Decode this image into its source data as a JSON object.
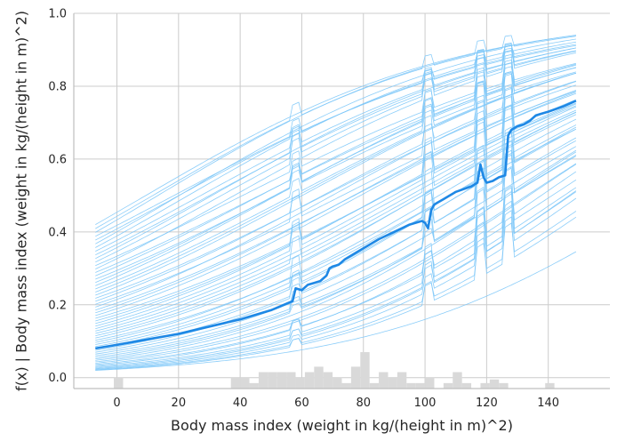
{
  "chart_data": {
    "type": "line",
    "title": "",
    "xlabel": "Body mass index (weight in kg/(height in m)^2)",
    "ylabel": "f(x) | Body mass index (weight in kg/(height in m)^2)",
    "xlim": [
      -14,
      160
    ],
    "ylim": [
      -0.03,
      1.0
    ],
    "x_ticks": [
      0,
      20,
      40,
      60,
      80,
      100,
      120,
      140
    ],
    "x_tick_labels": [
      "0",
      "20",
      "40",
      "60",
      "80",
      "100",
      "120",
      "140"
    ],
    "y_ticks": [
      0.0,
      0.2,
      0.4,
      0.6,
      0.8,
      1.0
    ],
    "y_tick_labels": [
      "0.0",
      "0.2",
      "0.4",
      "0.6",
      "0.8",
      "1.0"
    ],
    "grid": true,
    "colors": {
      "mean_line": "#1e88e5",
      "ice_lines": "#7ec8f8",
      "histogram": "#d9d9d9",
      "grid": "#cccccc",
      "axis": "#bfbfbf"
    },
    "mean_series": {
      "x": [
        -7,
        0,
        10,
        20,
        30,
        40,
        50,
        57,
        58,
        60,
        62,
        64,
        66,
        68,
        69,
        70,
        72,
        74,
        76,
        78,
        80,
        85,
        90,
        95,
        99,
        100,
        101,
        102,
        103,
        104,
        106,
        108,
        110,
        115,
        117,
        118,
        119,
        120,
        122,
        124,
        126,
        127,
        128,
        130,
        132,
        134,
        136,
        140,
        145,
        149
      ],
      "y": [
        0.08,
        0.09,
        0.105,
        0.12,
        0.14,
        0.16,
        0.185,
        0.21,
        0.245,
        0.24,
        0.255,
        0.26,
        0.265,
        0.28,
        0.3,
        0.305,
        0.31,
        0.325,
        0.335,
        0.345,
        0.355,
        0.38,
        0.4,
        0.42,
        0.43,
        0.425,
        0.41,
        0.46,
        0.475,
        0.48,
        0.49,
        0.5,
        0.51,
        0.525,
        0.535,
        0.585,
        0.55,
        0.535,
        0.54,
        0.55,
        0.555,
        0.665,
        0.68,
        0.69,
        0.695,
        0.705,
        0.72,
        0.73,
        0.745,
        0.76
      ]
    },
    "ice_lines": {
      "count": 60,
      "x_range": [
        -7,
        149
      ],
      "start_y_range": [
        0.02,
        0.42
      ],
      "end_y_range": [
        0.37,
        0.94
      ]
    },
    "histogram": {
      "bins": [
        {
          "x0": -1,
          "x1": 2,
          "h": 0.03
        },
        {
          "x0": 37,
          "x1": 40,
          "h": 0.03
        },
        {
          "x0": 40,
          "x1": 43,
          "h": 0.03
        },
        {
          "x0": 43,
          "x1": 46,
          "h": 0.015
        },
        {
          "x0": 46,
          "x1": 49,
          "h": 0.045
        },
        {
          "x0": 49,
          "x1": 52,
          "h": 0.045
        },
        {
          "x0": 52,
          "x1": 55,
          "h": 0.045
        },
        {
          "x0": 55,
          "x1": 58,
          "h": 0.045
        },
        {
          "x0": 58,
          "x1": 61,
          "h": 0.03
        },
        {
          "x0": 61,
          "x1": 64,
          "h": 0.045
        },
        {
          "x0": 64,
          "x1": 67,
          "h": 0.06
        },
        {
          "x0": 67,
          "x1": 70,
          "h": 0.045
        },
        {
          "x0": 70,
          "x1": 73,
          "h": 0.03
        },
        {
          "x0": 73,
          "x1": 76,
          "h": 0.015
        },
        {
          "x0": 76,
          "x1": 79,
          "h": 0.06
        },
        {
          "x0": 79,
          "x1": 82,
          "h": 0.1
        },
        {
          "x0": 82,
          "x1": 85,
          "h": 0.015
        },
        {
          "x0": 85,
          "x1": 88,
          "h": 0.045
        },
        {
          "x0": 88,
          "x1": 91,
          "h": 0.03
        },
        {
          "x0": 91,
          "x1": 94,
          "h": 0.045
        },
        {
          "x0": 94,
          "x1": 97,
          "h": 0.015
        },
        {
          "x0": 97,
          "x1": 100,
          "h": 0.015
        },
        {
          "x0": 100,
          "x1": 103,
          "h": 0.03
        },
        {
          "x0": 106,
          "x1": 109,
          "h": 0.015
        },
        {
          "x0": 109,
          "x1": 112,
          "h": 0.045
        },
        {
          "x0": 112,
          "x1": 115,
          "h": 0.015
        },
        {
          "x0": 118,
          "x1": 121,
          "h": 0.015
        },
        {
          "x0": 121,
          "x1": 124,
          "h": 0.025
        },
        {
          "x0": 124,
          "x1": 127,
          "h": 0.015
        },
        {
          "x0": 139,
          "x1": 142,
          "h": 0.015
        }
      ]
    }
  }
}
